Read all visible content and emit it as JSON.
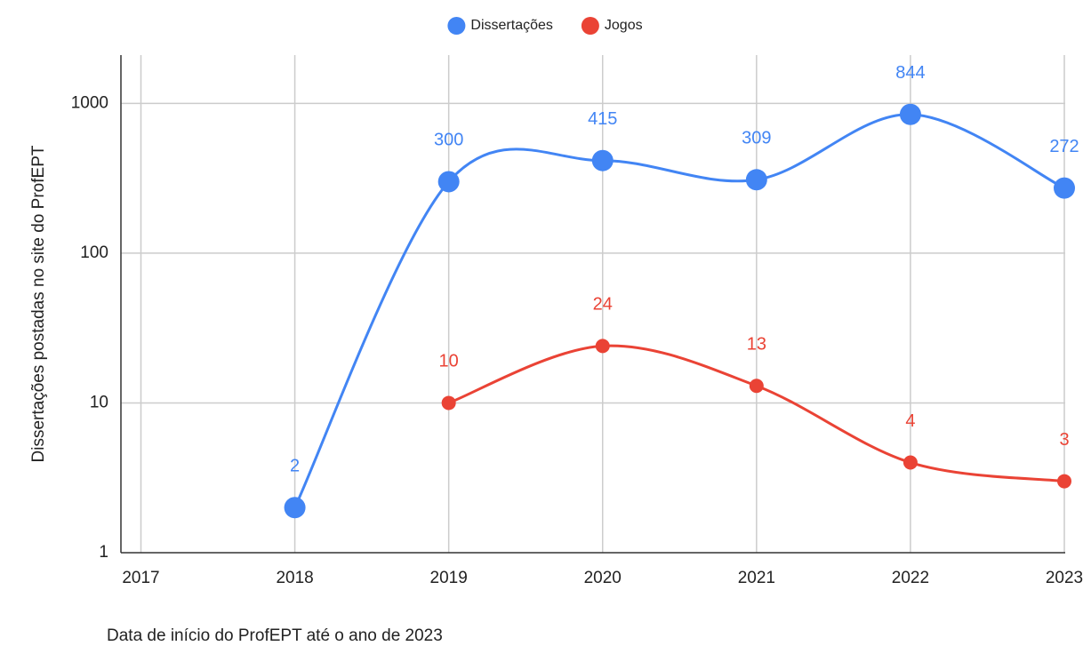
{
  "chart_data": {
    "type": "line",
    "x_label": "Data de início do ProfEPT até o ano de 2023",
    "y_label": "Dissertações postadas no site do ProfEPT",
    "x": [
      2018,
      2019,
      2020,
      2021,
      2022,
      2023
    ],
    "series": [
      {
        "name": "Dissertações",
        "color": "#4285f4",
        "values": [
          2,
          300,
          415,
          309,
          844,
          272
        ]
      },
      {
        "name": "Jogos",
        "color": "#ea4335",
        "values": [
          null,
          10,
          24,
          13,
          4,
          3
        ]
      }
    ],
    "xlim": [
      2016.87,
      2023
    ],
    "xticks": [
      2017,
      2018,
      2019,
      2020,
      2021,
      2022,
      2023
    ],
    "ylim": [
      1,
      2100
    ],
    "yticks": [
      1,
      10,
      100,
      1000
    ],
    "y_scale": "log",
    "grid": true,
    "legend": "top",
    "smooth": true
  }
}
